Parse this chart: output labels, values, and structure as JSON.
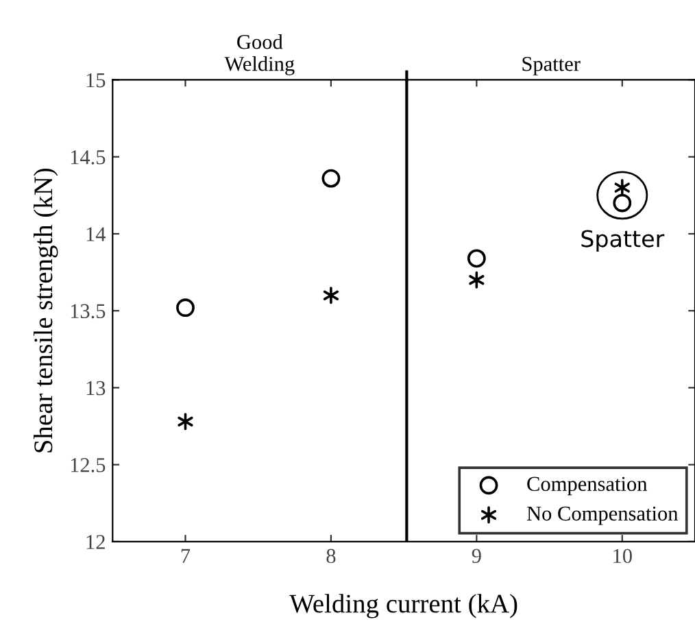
{
  "chart_data": {
    "type": "scatter",
    "xlabel": "Welding current (kA)",
    "ylabel": "Shear tensile strength (kN)",
    "x": [
      7,
      8,
      9,
      10
    ],
    "series": [
      {
        "name": "Compensation",
        "color": "#000000",
        "marker": "circle",
        "values": [
          13.52,
          14.36,
          13.84,
          14.2
        ]
      },
      {
        "name": "No Compensation",
        "color": "#000000",
        "marker": "cross",
        "values": [
          12.78,
          13.6,
          13.7,
          14.3
        ]
      }
    ],
    "xlim": [
      6.5,
      10.5
    ],
    "ylim": [
      12,
      15
    ],
    "xticks": [
      7,
      8,
      9,
      10
    ],
    "yticks": [
      12,
      12.5,
      13,
      13.5,
      14,
      14.5,
      15
    ],
    "ref_lines": [
      {
        "axis": "x",
        "value": 8.52,
        "color": "#000000"
      }
    ],
    "annotations": [
      "Good\nWelding",
      "Spatter",
      {
        "text": "Spatter",
        "x": 10,
        "y": 14.25
      }
    ],
    "legend": "bottom right",
    "grid": false
  }
}
